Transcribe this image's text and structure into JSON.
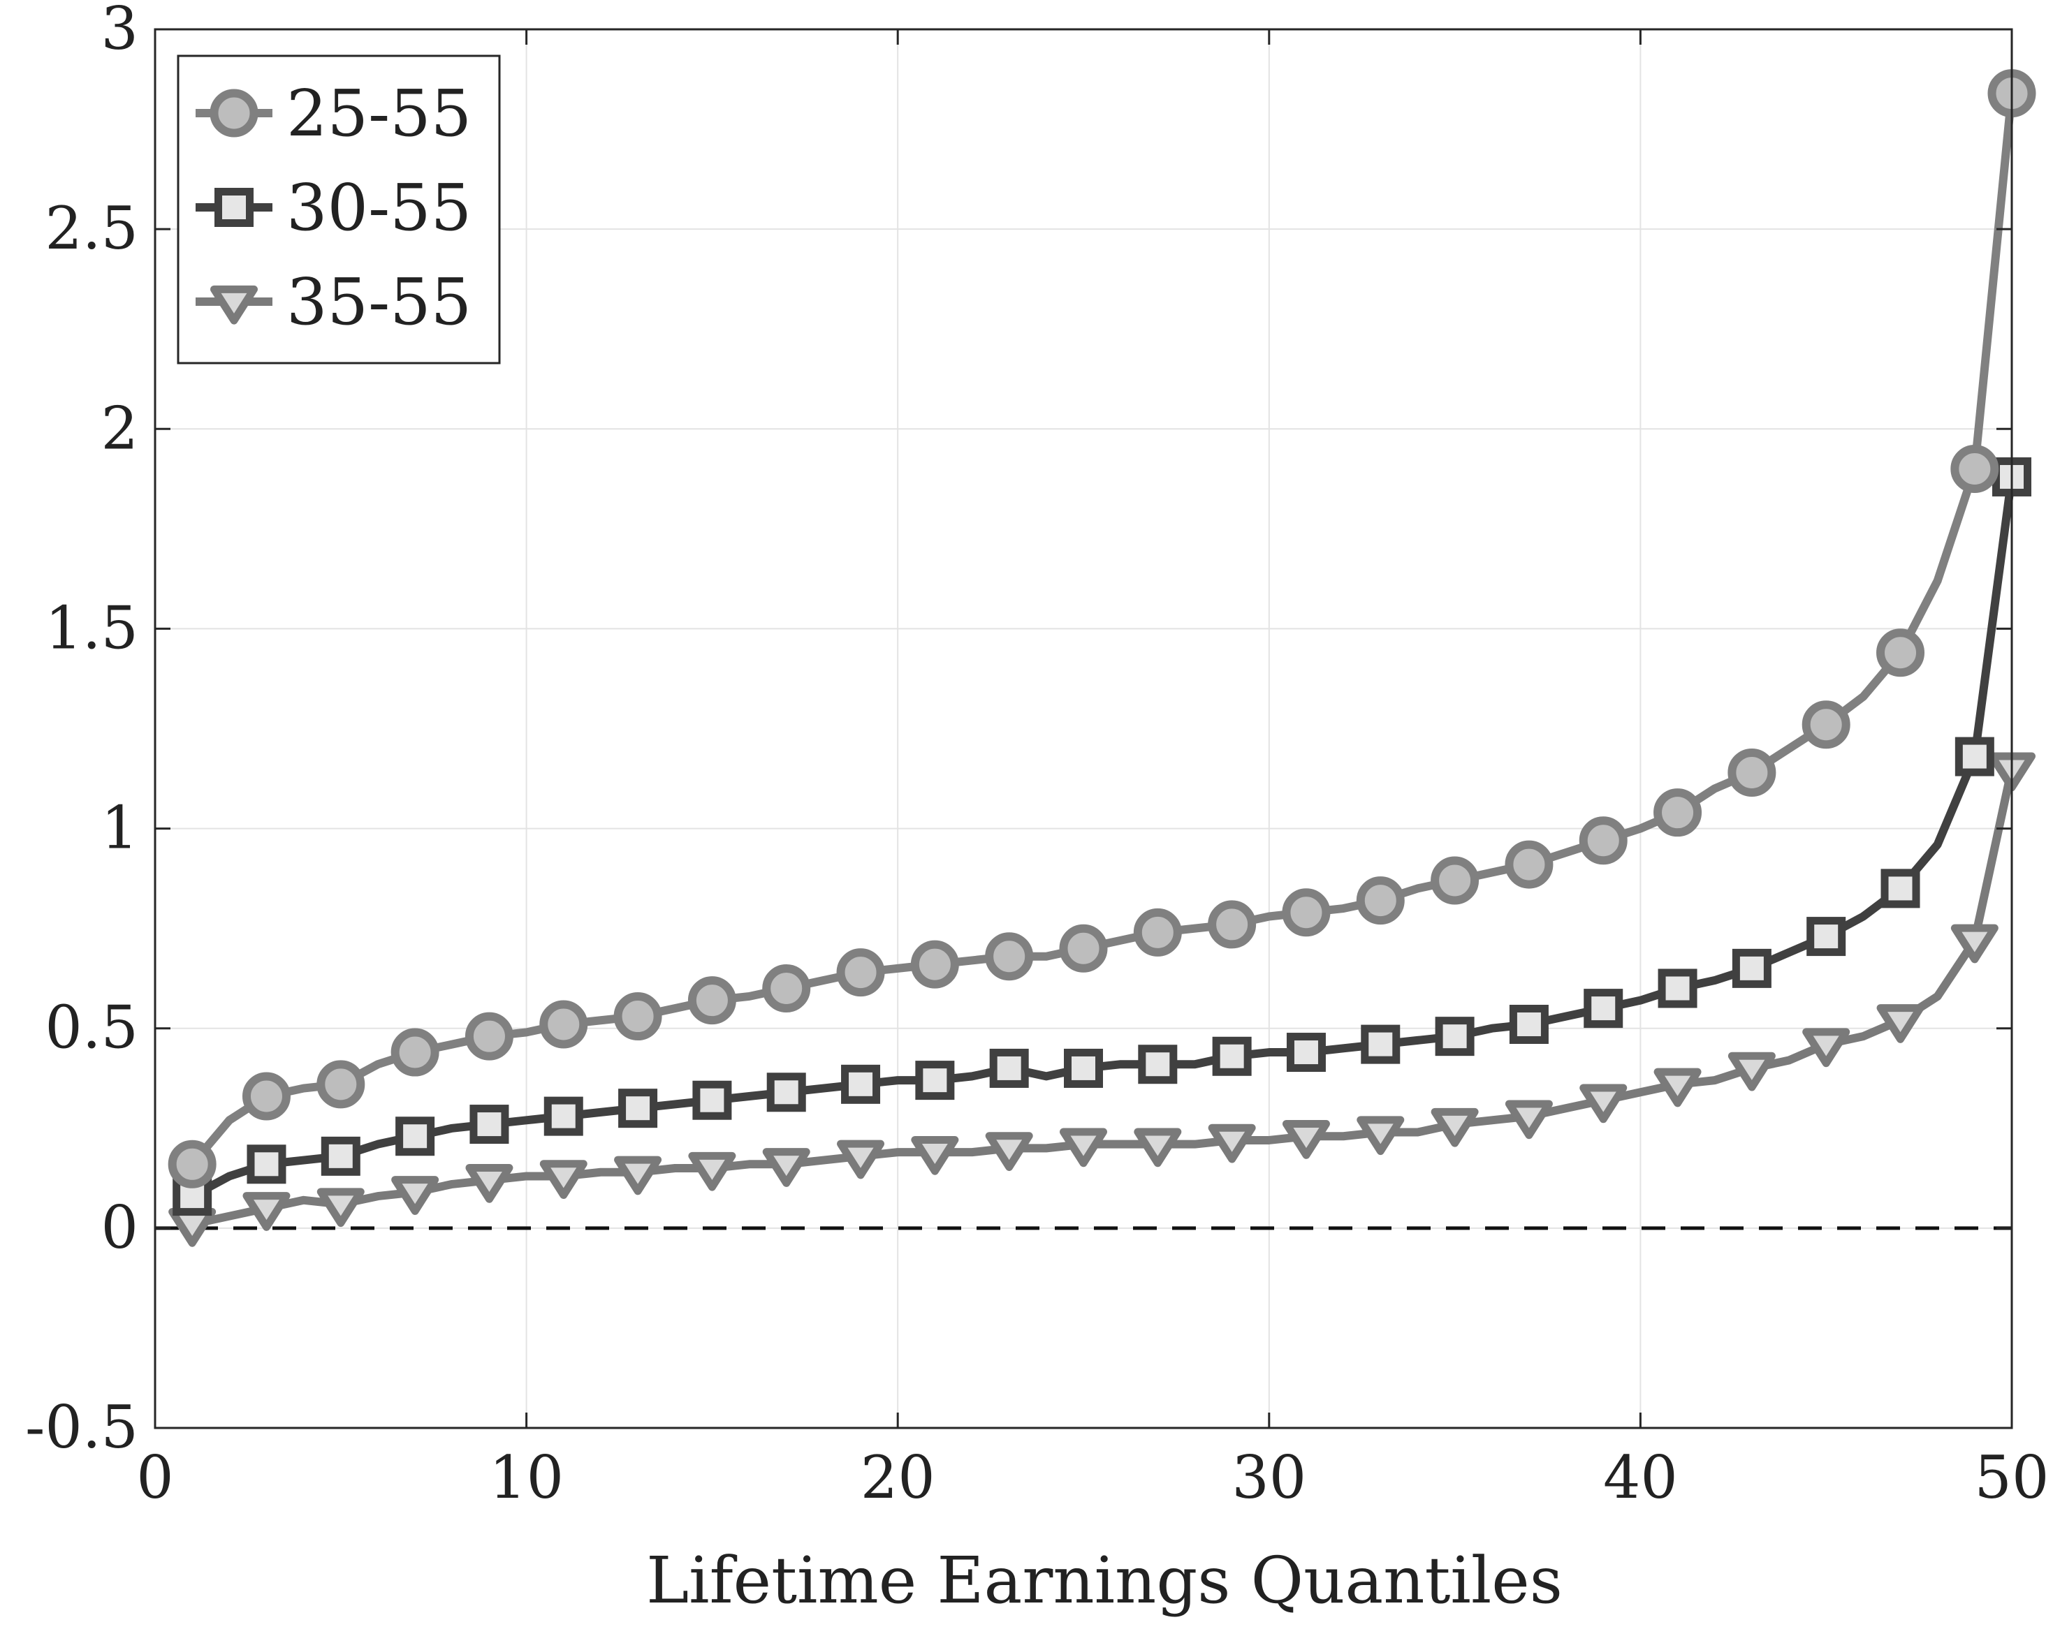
{
  "chart_data": {
    "type": "line",
    "title": "",
    "xlabel": "Lifetime Earnings Quantiles",
    "ylabel": "",
    "xlim": [
      0,
      50
    ],
    "ylim": [
      -0.5,
      3
    ],
    "xticks": [
      "0",
      "10",
      "20",
      "30",
      "40",
      "50"
    ],
    "yticks": [
      "-0.5",
      "0",
      "0.5",
      "1",
      "1.5",
      "2",
      "2.5",
      "3"
    ],
    "grid": true,
    "legend_position": "top-left",
    "reference_line": {
      "y": 0,
      "style": "dashed"
    },
    "series": [
      {
        "name": "25-55",
        "marker": "circle",
        "color": "#808080",
        "marker_fill": "#bdbdbd",
        "x": [
          1,
          2,
          3,
          4,
          5,
          6,
          7,
          8,
          9,
          10,
          11,
          12,
          13,
          14,
          15,
          16,
          17,
          18,
          19,
          20,
          21,
          22,
          23,
          24,
          25,
          26,
          27,
          28,
          29,
          30,
          31,
          32,
          33,
          34,
          35,
          36,
          37,
          38,
          39,
          40,
          41,
          42,
          43,
          44,
          45,
          46,
          47,
          48,
          49,
          50
        ],
        "values": [
          0.16,
          0.27,
          0.33,
          0.35,
          0.36,
          0.41,
          0.44,
          0.46,
          0.48,
          0.49,
          0.51,
          0.52,
          0.53,
          0.55,
          0.57,
          0.58,
          0.6,
          0.62,
          0.64,
          0.65,
          0.66,
          0.67,
          0.68,
          0.68,
          0.7,
          0.72,
          0.74,
          0.75,
          0.76,
          0.78,
          0.79,
          0.8,
          0.82,
          0.85,
          0.87,
          0.89,
          0.91,
          0.94,
          0.97,
          1.0,
          1.04,
          1.1,
          1.14,
          1.2,
          1.26,
          1.33,
          1.44,
          1.62,
          1.9,
          2.84
        ]
      },
      {
        "name": "30-55",
        "marker": "square",
        "color": "#404040",
        "marker_fill": "#e6e6e6",
        "x": [
          1,
          2,
          3,
          4,
          5,
          6,
          7,
          8,
          9,
          10,
          11,
          12,
          13,
          14,
          15,
          16,
          17,
          18,
          19,
          20,
          21,
          22,
          23,
          24,
          25,
          26,
          27,
          28,
          29,
          30,
          31,
          32,
          33,
          34,
          35,
          36,
          37,
          38,
          39,
          40,
          41,
          42,
          43,
          44,
          45,
          46,
          47,
          48,
          49,
          50
        ],
        "values": [
          0.08,
          0.13,
          0.16,
          0.17,
          0.18,
          0.21,
          0.23,
          0.25,
          0.26,
          0.27,
          0.28,
          0.29,
          0.3,
          0.31,
          0.32,
          0.33,
          0.34,
          0.35,
          0.36,
          0.37,
          0.37,
          0.38,
          0.4,
          0.38,
          0.4,
          0.41,
          0.41,
          0.41,
          0.43,
          0.44,
          0.44,
          0.45,
          0.46,
          0.47,
          0.48,
          0.5,
          0.51,
          0.53,
          0.55,
          0.57,
          0.6,
          0.62,
          0.65,
          0.69,
          0.73,
          0.78,
          0.85,
          0.96,
          1.18,
          1.88
        ]
      },
      {
        "name": "35-55",
        "marker": "triangle-down",
        "color": "#7a7a7a",
        "marker_fill": "#d9d9d9",
        "x": [
          1,
          2,
          3,
          4,
          5,
          6,
          7,
          8,
          9,
          10,
          11,
          12,
          13,
          14,
          15,
          16,
          17,
          18,
          19,
          20,
          21,
          22,
          23,
          24,
          25,
          26,
          27,
          28,
          29,
          30,
          31,
          32,
          33,
          34,
          35,
          36,
          37,
          38,
          39,
          40,
          41,
          42,
          43,
          44,
          45,
          46,
          47,
          48,
          49,
          50
        ],
        "values": [
          0.01,
          0.03,
          0.05,
          0.07,
          0.06,
          0.08,
          0.09,
          0.11,
          0.12,
          0.13,
          0.13,
          0.14,
          0.14,
          0.15,
          0.15,
          0.16,
          0.16,
          0.17,
          0.18,
          0.19,
          0.19,
          0.19,
          0.2,
          0.2,
          0.21,
          0.21,
          0.21,
          0.21,
          0.22,
          0.22,
          0.23,
          0.23,
          0.24,
          0.24,
          0.26,
          0.27,
          0.28,
          0.3,
          0.32,
          0.34,
          0.36,
          0.37,
          0.4,
          0.42,
          0.46,
          0.48,
          0.52,
          0.58,
          0.72,
          1.15
        ]
      }
    ]
  }
}
